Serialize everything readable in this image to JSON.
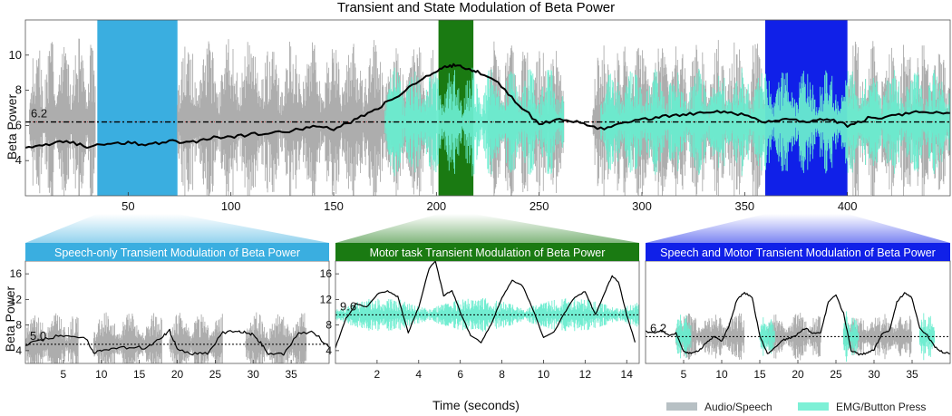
{
  "chart_data": [
    {
      "id": "overview",
      "type": "line",
      "title": "Transient and State Modulation of Beta Power",
      "ylabel": "Beta Power",
      "xlim": [
        0,
        450
      ],
      "ylim": [
        2,
        12
      ],
      "x_ticks": [
        50,
        100,
        150,
        200,
        250,
        300,
        350,
        400
      ],
      "y_ticks": [
        4,
        6,
        8,
        10
      ],
      "threshold": {
        "value": 6.2,
        "label": "6.2"
      },
      "highlight_bands": [
        {
          "name": "Speech-only",
          "start": 35,
          "end": 74,
          "color": "#3aaee0"
        },
        {
          "name": "Motor task",
          "start": 201,
          "end": 218,
          "color": "#1a7a12"
        },
        {
          "name": "Speech and Motor",
          "start": 360,
          "end": 400,
          "color": "#1020e8"
        }
      ],
      "series": {
        "x": [
          0,
          10,
          20,
          30,
          40,
          50,
          60,
          70,
          80,
          90,
          100,
          110,
          120,
          130,
          140,
          150,
          160,
          170,
          180,
          190,
          200,
          205,
          210,
          215,
          220,
          230,
          240,
          250,
          260,
          270,
          280,
          290,
          300,
          310,
          320,
          330,
          340,
          350,
          360,
          370,
          380,
          390,
          400,
          410,
          420,
          430,
          440,
          450
        ],
        "y": [
          4.7,
          4.9,
          5.1,
          4.8,
          5.0,
          5.0,
          4.9,
          5.1,
          5.0,
          5.3,
          5.3,
          5.5,
          5.6,
          5.7,
          5.9,
          5.8,
          6.3,
          6.9,
          7.6,
          8.4,
          9.1,
          9.4,
          9.4,
          9.2,
          9.1,
          8.4,
          7.2,
          6.1,
          6.3,
          6.2,
          5.8,
          6.1,
          6.3,
          6.5,
          6.6,
          6.7,
          6.8,
          6.6,
          6.2,
          6.4,
          6.2,
          6.4,
          6.0,
          6.4,
          6.5,
          6.7,
          6.8,
          6.7
        ]
      },
      "envelopes": {
        "audio_regions": [
          [
            2,
            34
          ],
          [
            74,
            200
          ],
          [
            225,
            262
          ],
          [
            276,
            360
          ],
          [
            400,
            450
          ]
        ],
        "emg_regions": [
          [
            175,
            262
          ],
          [
            280,
            450
          ]
        ]
      }
    },
    {
      "id": "speech-only",
      "type": "line",
      "title": "Speech-only Transient Modulation of Beta Power",
      "header_color": "#3aaee0",
      "xlim": [
        0,
        40
      ],
      "ylim": [
        2,
        18
      ],
      "x_ticks": [
        5,
        10,
        15,
        20,
        25,
        30,
        35
      ],
      "y_ticks": [
        4,
        8,
        12,
        16
      ],
      "threshold": {
        "value": 5.0,
        "label": "5.0"
      },
      "series": {
        "x": [
          0,
          2,
          4,
          6,
          8,
          9,
          10,
          12,
          14,
          16,
          18,
          19,
          20,
          22,
          24,
          26,
          28,
          29,
          30,
          31,
          32,
          34,
          36,
          38,
          40
        ],
        "y": [
          5.0,
          5.6,
          6.2,
          6.4,
          5.8,
          3.6,
          3.9,
          4.3,
          4.6,
          4.4,
          6.1,
          7.1,
          4.3,
          3.5,
          3.6,
          6.8,
          7.2,
          6.8,
          6.6,
          5.2,
          3.5,
          3.4,
          6.8,
          6.9,
          4.5
        ]
      },
      "envelopes": {
        "audio_regions": [
          [
            0,
            7
          ],
          [
            9,
            18
          ],
          [
            19,
            26
          ],
          [
            29,
            37
          ]
        ]
      }
    },
    {
      "id": "motor-task",
      "type": "line",
      "title": "Motor task Transient Modulation of Beta Power",
      "header_color": "#1a7a12",
      "xlim": [
        0,
        14.6
      ],
      "ylim": [
        2,
        18
      ],
      "x_ticks": [
        2,
        4,
        6,
        8,
        10,
        12,
        14
      ],
      "y_ticks": [
        4,
        8,
        12,
        16
      ],
      "threshold": {
        "value": 9.6,
        "label": "9.6"
      },
      "series": {
        "x": [
          0,
          0.5,
          1,
          1.5,
          2,
          2.5,
          3,
          3.5,
          4,
          4.5,
          4.8,
          5.2,
          5.6,
          6,
          6.5,
          7,
          7.5,
          8,
          8.5,
          9,
          9.5,
          10,
          10.5,
          11,
          11.5,
          12,
          12.5,
          13,
          13.3,
          13.6,
          14,
          14.4
        ],
        "y": [
          4.5,
          9.0,
          11.3,
          10.8,
          12.8,
          13.3,
          12.4,
          6.8,
          10.8,
          16.8,
          18.0,
          12.6,
          13.4,
          10.0,
          6.3,
          5.3,
          8.2,
          12.3,
          15.0,
          14.1,
          10.4,
          6.0,
          6.9,
          9.8,
          12.4,
          13.2,
          9.6,
          13.5,
          15.7,
          14.8,
          9.6,
          5.3
        ]
      },
      "envelopes": {
        "emg_regions": [
          [
            0,
            14.6
          ]
        ]
      }
    },
    {
      "id": "speech-motor",
      "type": "line",
      "title": "Speech and Motor Transient Modulation of Beta Power",
      "header_color": "#1020e8",
      "xlim": [
        0,
        40
      ],
      "ylim": [
        2,
        18
      ],
      "x_ticks": [
        5,
        10,
        15,
        20,
        25,
        30,
        35
      ],
      "y_ticks": [],
      "threshold": {
        "value": 6.2,
        "label": "6.2"
      },
      "series": {
        "x": [
          0,
          1,
          2,
          3,
          4,
          5,
          6,
          7,
          8,
          9,
          10,
          11,
          12,
          13,
          14,
          15,
          16,
          17,
          18,
          19,
          20,
          21,
          22,
          23,
          24,
          25,
          26,
          27,
          28,
          29,
          30,
          31,
          32,
          33,
          34,
          35,
          36,
          37,
          38,
          39,
          40
        ],
        "y": [
          7.0,
          6.8,
          7.2,
          6.4,
          6.8,
          3.8,
          3.5,
          4.0,
          5.2,
          6.2,
          5.4,
          8.0,
          12.0,
          13.0,
          12.4,
          6.2,
          3.6,
          4.4,
          5.6,
          6.0,
          6.6,
          7.5,
          6.6,
          6.8,
          11.6,
          12.6,
          9.8,
          4.0,
          3.4,
          3.6,
          4.1,
          6.6,
          7.0,
          11.6,
          13.0,
          12.2,
          7.4,
          6.4,
          4.5,
          3.8,
          3.5
        ]
      },
      "envelopes": {
        "audio_regions": [
          [
            4,
            13
          ],
          [
            16,
            23
          ],
          [
            26,
            35
          ]
        ],
        "emg_regions": [
          [
            4,
            6
          ],
          [
            15,
            17
          ],
          [
            26,
            28
          ],
          [
            36,
            38
          ]
        ]
      }
    }
  ],
  "labels": {
    "shared_xlabel": "Time (seconds)",
    "bottom_ylabel": "Beta Power"
  },
  "legend": [
    {
      "label": "Audio/Speech",
      "color": "#b7c0c4"
    },
    {
      "label": "EMG/Button Press",
      "color": "#7df0d6"
    }
  ],
  "colors": {
    "audio": "#a9a9a9",
    "emg": "#69eccf",
    "beta_line": "#000000",
    "threshold": "#000000",
    "red_guide": "#cc2a2a"
  }
}
